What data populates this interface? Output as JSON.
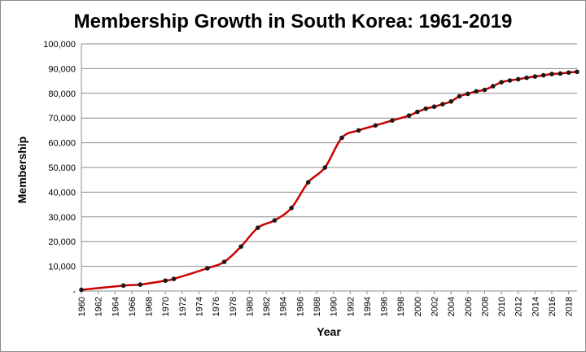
{
  "chart_data": {
    "type": "line",
    "title": "Membership Growth in South Korea:  1961-2019",
    "xlabel": "Year",
    "ylabel": "Membership",
    "xlim": [
      1960,
      2019
    ],
    "ylim": [
      0,
      100000
    ],
    "x_ticks": [
      "1960",
      "1962",
      "1964",
      "1966",
      "1968",
      "1970",
      "1972",
      "1974",
      "1976",
      "1978",
      "1980",
      "1982",
      "1984",
      "1986",
      "1988",
      "1990",
      "1992",
      "1994",
      "1996",
      "1998",
      "2000",
      "2002",
      "2004",
      "2006",
      "2008",
      "2010",
      "2012",
      "2014",
      "2016",
      "2018"
    ],
    "y_ticks": [
      "-",
      "10,000",
      "20,000",
      "30,000",
      "40,000",
      "50,000",
      "60,000",
      "70,000",
      "80,000",
      "90,000",
      "100,000"
    ],
    "y_tick_values": [
      0,
      10000,
      20000,
      30000,
      40000,
      50000,
      60000,
      70000,
      80000,
      90000,
      100000
    ],
    "grid": true,
    "legend": "none",
    "line_color": "#cc0000",
    "marker_color": "#1a1a1a",
    "series": [
      {
        "x": [
          1960,
          1965,
          1967,
          1970,
          1971,
          1975,
          1977,
          1979,
          1981,
          1983,
          1985,
          1987,
          1989,
          1991,
          1993,
          1995,
          1997,
          1999,
          2000,
          2001,
          2002,
          2003,
          2004,
          2005,
          2006,
          2007,
          2008,
          2009,
          2010,
          2011,
          2012,
          2013,
          2014,
          2015,
          2016,
          2017,
          2018,
          2019
        ],
        "y": [
          500,
          2200,
          2600,
          4200,
          4900,
          9200,
          11800,
          18000,
          25600,
          28600,
          33600,
          44000,
          50000,
          62000,
          65000,
          67000,
          69000,
          71000,
          72500,
          73800,
          74600,
          75600,
          76700,
          78800,
          79800,
          80800,
          81400,
          82900,
          84500,
          85200,
          85700,
          86300,
          86800,
          87300,
          87800,
          88000,
          88400,
          88700
        ]
      }
    ]
  }
}
